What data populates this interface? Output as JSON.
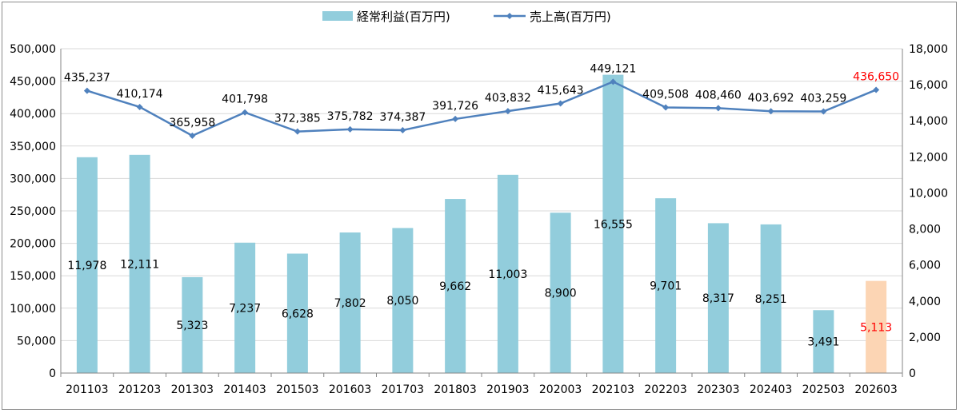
{
  "chart_data": {
    "type": "bar+line",
    "categories": [
      "201103",
      "201203",
      "201303",
      "201403",
      "201503",
      "201603",
      "201703",
      "201803",
      "201903",
      "202003",
      "202103",
      "202203",
      "202303",
      "202403",
      "202503",
      "202603"
    ],
    "series": [
      {
        "name": "経常利益(百万円)",
        "kind": "bar",
        "axis": "right",
        "values": [
          11978,
          12111,
          5323,
          7237,
          6628,
          7802,
          8050,
          9662,
          11003,
          8900,
          16555,
          9701,
          8317,
          8251,
          3491,
          5113
        ],
        "labels": [
          "11,978",
          "12,111",
          "5,323",
          "7,237",
          "6,628",
          "7,802",
          "8,050",
          "9,662",
          "11,003",
          "8,900",
          "16,555",
          "9,701",
          "8,317",
          "8,251",
          "3,491",
          "5,113"
        ],
        "color": "#92cddc",
        "highlight_color": "#fcd5b4"
      },
      {
        "name": "売上高(百万円)",
        "kind": "line",
        "axis": "left",
        "values": [
          435237,
          410174,
          365958,
          401798,
          372385,
          375782,
          374387,
          391726,
          403832,
          415643,
          449121,
          409508,
          408460,
          403692,
          403259,
          436650
        ],
        "labels": [
          "435,237",
          "410,174",
          "365,958",
          "401,798",
          "372,385",
          "375,782",
          "374,387",
          "391,726",
          "403,832",
          "415,643",
          "449,121",
          "409,508",
          "408,460",
          "403,692",
          "403,259",
          "436,650"
        ],
        "color": "#4f81bd"
      }
    ],
    "highlight_index": 15,
    "highlight_label_color": "#ff0000",
    "left_axis": {
      "ylim": [
        0,
        500000
      ],
      "ticks": [
        "0",
        "50,000",
        "100,000",
        "150,000",
        "200,000",
        "250,000",
        "300,000",
        "350,000",
        "400,000",
        "450,000",
        "500,000"
      ]
    },
    "right_axis": {
      "ylim": [
        0,
        18000
      ],
      "ticks": [
        "0",
        "2,000",
        "4,000",
        "6,000",
        "8,000",
        "10,000",
        "12,000",
        "14,000",
        "16,000",
        "18,000"
      ]
    },
    "grid": true,
    "legend_position": "top-center"
  }
}
